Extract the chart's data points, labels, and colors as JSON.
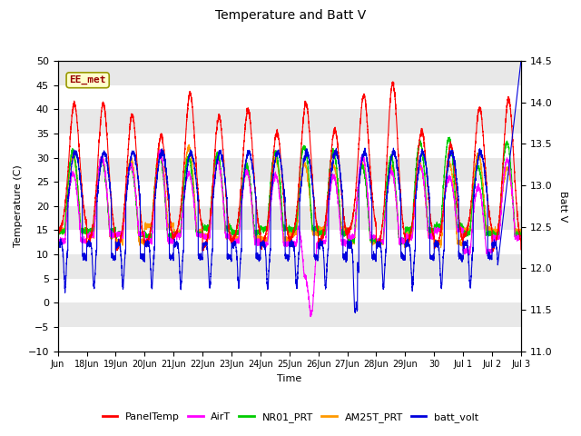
{
  "title": "Temperature and Batt V",
  "xlabel": "Time",
  "ylabel_left": "Temperature (C)",
  "ylabel_right": "Batt V",
  "ylim_left": [
    -10,
    50
  ],
  "ylim_right": [
    11.0,
    14.5
  ],
  "yticks_left": [
    -10,
    -5,
    0,
    5,
    10,
    15,
    20,
    25,
    30,
    35,
    40,
    45,
    50
  ],
  "yticks_right": [
    11.0,
    11.5,
    12.0,
    12.5,
    13.0,
    13.5,
    14.0,
    14.5
  ],
  "site_label": "EE_met",
  "series_colors": {
    "PanelTemp": "#ff0000",
    "AirT": "#ff00ff",
    "NR01_PRT": "#00cc00",
    "AM25T_PRT": "#ff9900",
    "batt_volt": "#0000dd"
  },
  "background_color": "#ffffff",
  "plot_bg_light": "#e8e8e8",
  "plot_bg_dark": "#c8c8c8",
  "num_days": 16,
  "font_size": 8,
  "title_fontsize": 10
}
